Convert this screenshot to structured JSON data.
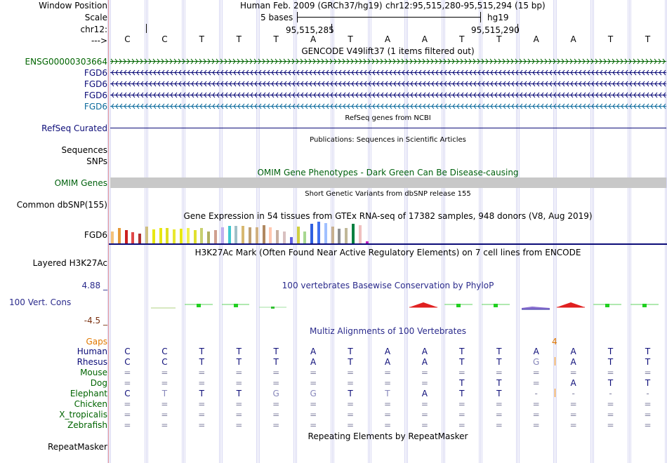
{
  "labels": {
    "window_position": "Window Position",
    "scale": "Scale",
    "chrom": "chr12:",
    "arrow": "--->",
    "gencode_gene": "ENSG00000303664",
    "fgd6_1": "FGD6",
    "fgd6_2": "FGD6",
    "fgd6_3": "FGD6",
    "fgd6_4": "FGD6",
    "refseq": "RefSeq Curated",
    "sequences": "Sequences",
    "snps": "SNPs",
    "omim_genes": "OMIM Genes",
    "common_dbsnp": "Common dbSNP(155)",
    "gtex_gene": "FGD6",
    "layered": "Layered H3K27Ac",
    "cons_max": "4.88 _",
    "cons_label": "100 Vert. Cons",
    "cons_min": "-4.5 _",
    "gaps": "Gaps",
    "repeatmasker": "RepeatMasker"
  },
  "header": {
    "assembly": "Human Feb. 2009 (GRCh37/hg19)",
    "position": "chr12:95,515,280-95,515,294 (15 bp)",
    "scale_text": "5 bases",
    "db": "hg19",
    "coord1": "95,515,285",
    "coord2": "95,515,290"
  },
  "bases": [
    "C",
    "C",
    "T",
    "T",
    "T",
    "A",
    "T",
    "A",
    "A",
    "T",
    "T",
    "A",
    "A",
    "T",
    "T"
  ],
  "track_titles": {
    "gencode": "GENCODE V49lift37 (1 items filtered out)",
    "refseq": "RefSeq genes from NCBI",
    "pubs": "Publications: Sequences in Scientific Articles",
    "omim": "OMIM Gene Phenotypes - Dark Green Can Be Disease-causing",
    "dbsnp": "Short Genetic Variants from dbSNP release 155",
    "gtex": "Gene Expression in 54 tissues from GTEx RNA-seq of 17382 samples, 948 donors (V8, Aug 2019)",
    "h3k27ac": "H3K27Ac Mark (Often Found Near Active Regulatory Elements) on 7 cell lines from ENCODE",
    "phylop": "100 vertebrates Basewise Conservation by PhyloP",
    "multiz": "Multiz Alignments of 100 Vertebrates",
    "repeats": "Repeating Elements by RepeatMasker"
  },
  "gap_count": "4",
  "alignment": [
    {
      "species": "Human",
      "bases": [
        "C",
        "C",
        "T",
        "T",
        "T",
        "A",
        "T",
        "A",
        "A",
        "T",
        "T",
        "A",
        "A",
        "T",
        "T"
      ]
    },
    {
      "species": "Rhesus",
      "bases": [
        "C",
        "C",
        "T",
        "T",
        "T",
        "A",
        "T",
        "A",
        "A",
        "T",
        "T",
        "G",
        "A",
        "T",
        "T"
      ]
    },
    {
      "species": "Mouse",
      "bases": [
        "=",
        "=",
        "=",
        "=",
        "=",
        "=",
        "=",
        "=",
        "=",
        "=",
        "=",
        "=",
        "=",
        "=",
        "="
      ]
    },
    {
      "species": "Dog",
      "bases": [
        "=",
        "=",
        "=",
        "=",
        "=",
        "=",
        "=",
        "=",
        "=",
        "T",
        "T",
        "=",
        "A",
        "T",
        "T"
      ]
    },
    {
      "species": "Elephant",
      "bases": [
        "C",
        "T",
        "T",
        "T",
        "G",
        "G",
        "T",
        "T",
        "A",
        "T",
        "T",
        "-",
        "-",
        "-",
        "-"
      ]
    },
    {
      "species": "Chicken",
      "bases": [
        "=",
        "=",
        "=",
        "=",
        "=",
        "=",
        "=",
        "=",
        "=",
        "=",
        "=",
        "=",
        "=",
        "=",
        "="
      ]
    },
    {
      "species": "X_tropicalis",
      "bases": [
        "=",
        "=",
        "=",
        "=",
        "=",
        "=",
        "=",
        "=",
        "=",
        "=",
        "=",
        "=",
        "=",
        "=",
        "="
      ]
    },
    {
      "species": "Zebrafish",
      "bases": [
        "=",
        "=",
        "=",
        "=",
        "=",
        "=",
        "=",
        "=",
        "=",
        "=",
        "=",
        "=",
        "=",
        "=",
        "="
      ]
    }
  ],
  "gtex_values": [
    0.55,
    0.72,
    0.62,
    0.5,
    0.45,
    0.78,
    0.66,
    0.7,
    0.72,
    0.66,
    0.68,
    0.7,
    0.6,
    0.72,
    0.55,
    0.62,
    0.74,
    0.82,
    0.8,
    0.8,
    0.75,
    0.73,
    0.85,
    0.75,
    0.62,
    0.55,
    0.28,
    0.78,
    0.55,
    0.9,
    1.0,
    0.93,
    0.78,
    0.68,
    0.72,
    0.9,
    0.85,
    0.1
  ],
  "gtex_colors": [
    "#f5c27a",
    "#e69a3a",
    "#cc2020",
    "#e04848",
    "#b03030",
    "#d0c080",
    "#e8e810",
    "#e8e810",
    "#e0e020",
    "#e8e830",
    "#e8e810",
    "#f0f050",
    "#e0e030",
    "#c8d070",
    "#b0b060",
    "#d0a090",
    "#c0b0f0",
    "#40c8d0",
    "#a0c0c8",
    "#d8b870",
    "#c0a070",
    "#d0b080",
    "#b08860",
    "#ffc8b0",
    "#c8b0a0",
    "#d8c0c0",
    "#6060e0",
    "#d0d040",
    "#a8d890",
    "#3060e0",
    "#4070f0",
    "#a0c0ff",
    "#c8b090",
    "#909090",
    "#c0b898",
    "#008040",
    "#f0c0c0",
    "#c020c0"
  ],
  "colors": {
    "gencode": "#006400",
    "fgd6_dark": "#0c0c78",
    "fgd6_light": "#0c6b9c",
    "refseq": "#0c0c78",
    "omim": "#00610d",
    "cons": "#2b2b8c",
    "cons_neg": "#7a3010",
    "gaps": "#e07800",
    "species": "#0c0c78",
    "species_far": "#006400"
  }
}
